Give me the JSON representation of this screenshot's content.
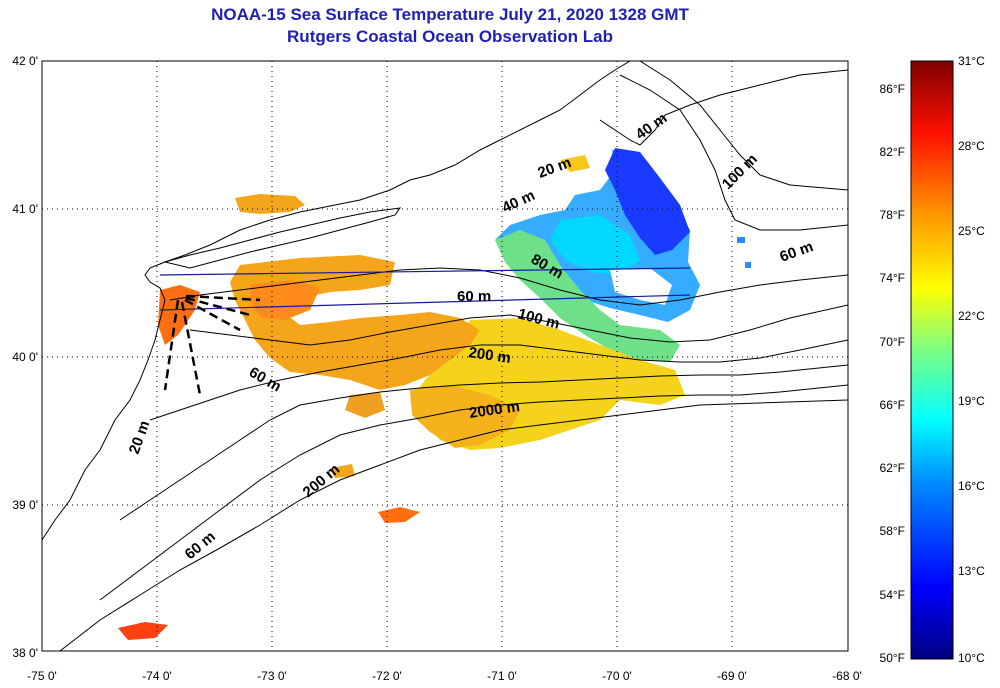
{
  "header": {
    "title": "NOAA-15 Sea Surface Temperature July 21, 2020 1328 GMT",
    "subtitle": "Rutgers Coastal Ocean Observation Lab"
  },
  "axes": {
    "lon_labels": [
      "-75 0'",
      "-74 0'",
      "-73 0'",
      "-72 0'",
      "-71 0'",
      "-70 0'",
      "-69 0'",
      "-68 0'"
    ],
    "lat_labels": [
      "42 0'",
      "41 0'",
      "40 0'",
      "39 0'",
      "38 0'"
    ],
    "lon_range": [
      -75,
      -68
    ],
    "lat_range": [
      38,
      42
    ]
  },
  "contour_labels": [
    "40 m",
    "20 m",
    "40 m",
    "100 m",
    "60 m",
    "60 m",
    "80 m",
    "100 m",
    "200 m",
    "60 m",
    "2000 m",
    "20 m",
    "200 m",
    "60 m"
  ],
  "colorbar": {
    "fahrenheit": [
      "86°F",
      "82°F",
      "78°F",
      "74°F",
      "70°F",
      "66°F",
      "62°F",
      "58°F",
      "54°F",
      "50°F"
    ],
    "celsius": [
      "31°C",
      "28°C",
      "25°C",
      "22°C",
      "19°C",
      "16°C",
      "13°C",
      "10°C"
    ],
    "colors": [
      "#00007f",
      "#0000ff",
      "#0080ff",
      "#00ffff",
      "#80ff80",
      "#ffff00",
      "#ff8000",
      "#ff0000",
      "#7f0000"
    ]
  },
  "colors": {
    "title": "#1f1fb4",
    "land_line": "#000000",
    "cruise_track": "#1a1a9a"
  }
}
